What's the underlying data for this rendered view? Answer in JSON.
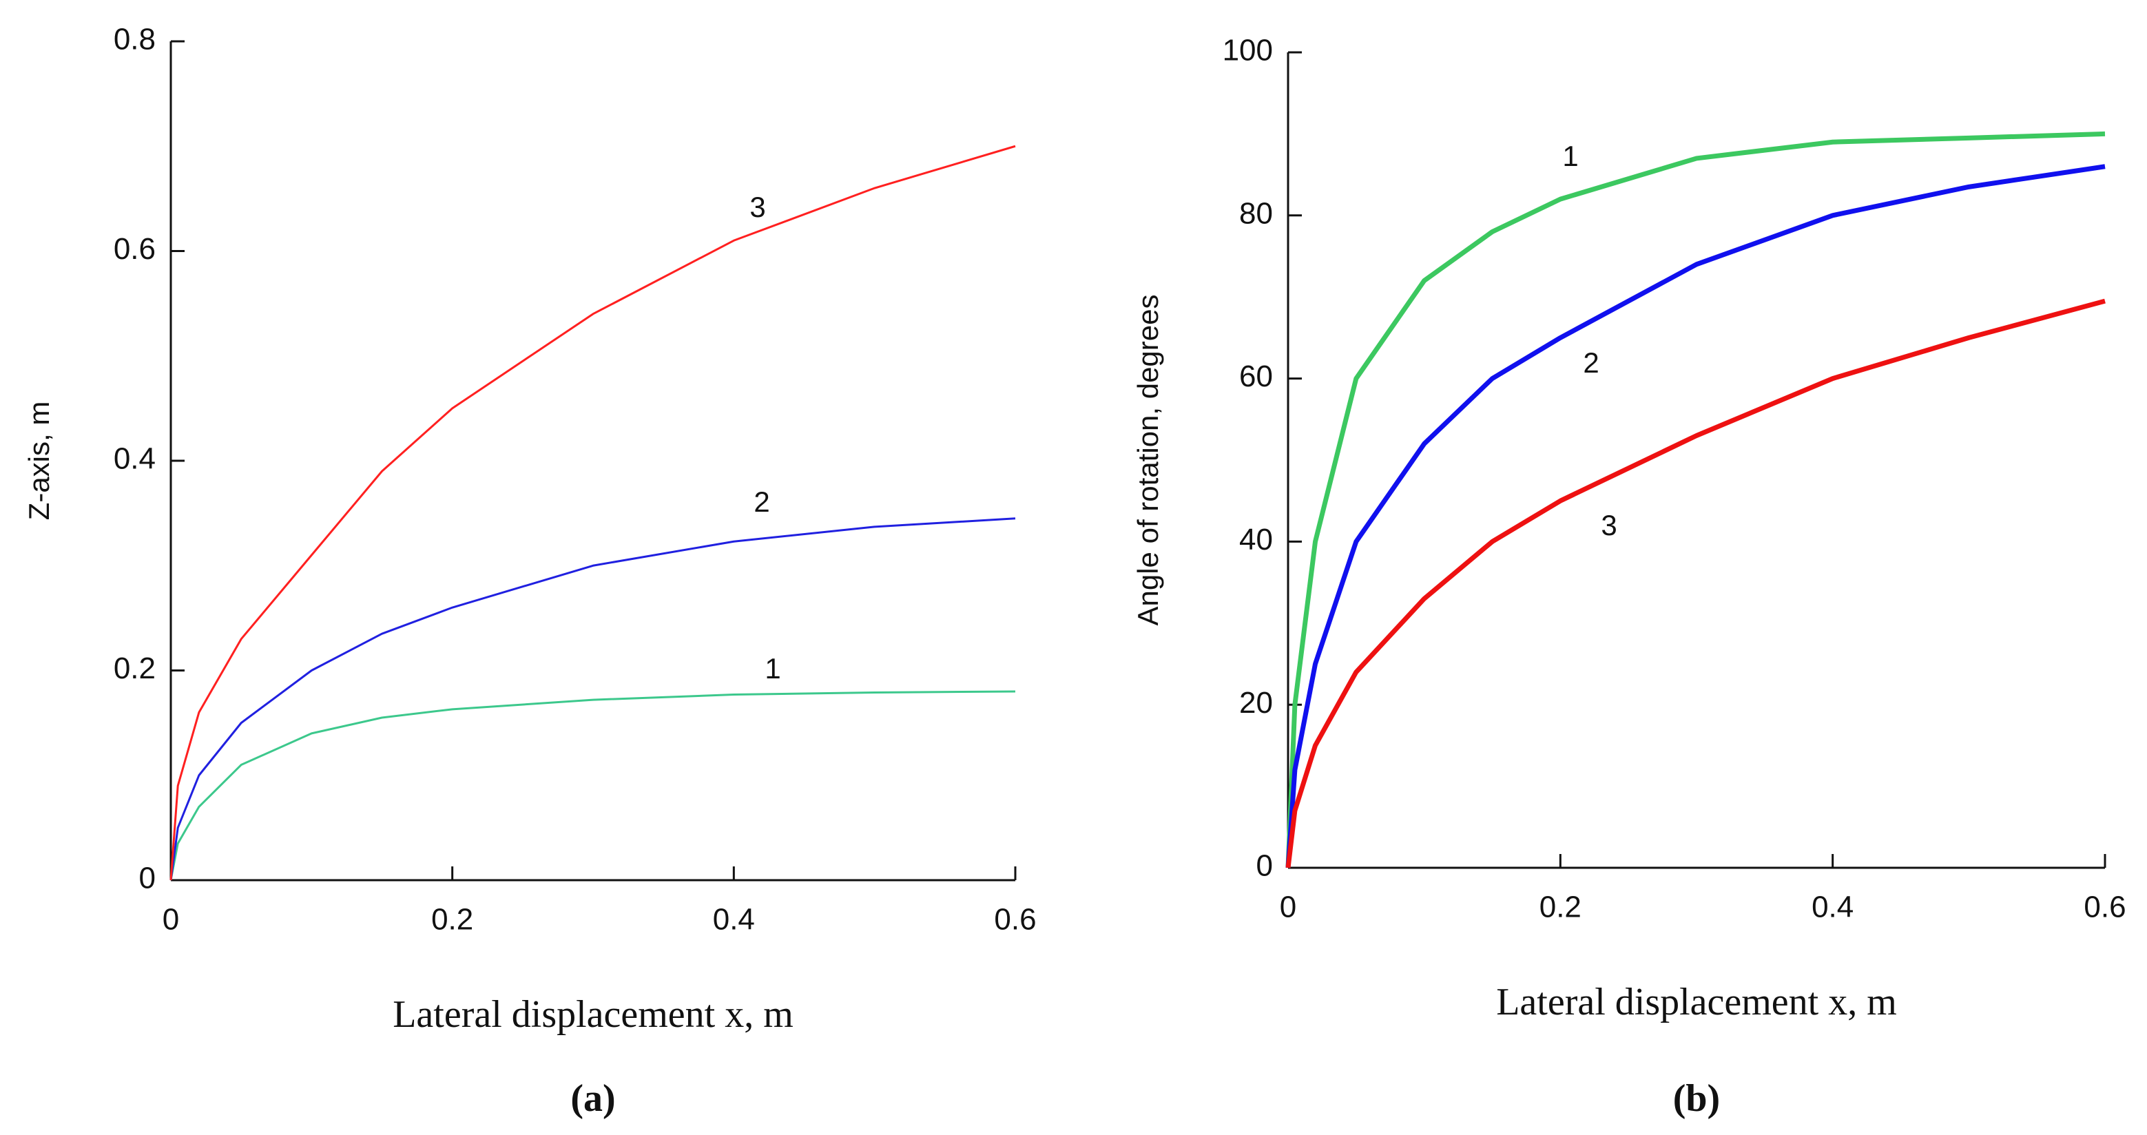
{
  "chart_data": [
    {
      "type": "line",
      "ylabel": "Z-axis, m",
      "xlabel": "Lateral displacement x, m",
      "caption": "(a)",
      "xlim": [
        0,
        0.6
      ],
      "xticks": [
        0,
        0.2,
        0.4,
        0.6
      ],
      "ylim": [
        0,
        0.8
      ],
      "yticks": [
        0,
        0.2,
        0.4,
        0.6,
        0.8
      ],
      "x": [
        0,
        0.005,
        0.02,
        0.05,
        0.1,
        0.15,
        0.2,
        0.3,
        0.4,
        0.5,
        0.6
      ],
      "series": [
        {
          "name": "1",
          "color": "#3cc88c",
          "values": [
            0,
            0.035,
            0.07,
            0.11,
            0.14,
            0.155,
            0.163,
            0.172,
            0.177,
            0.179,
            0.18
          ]
        },
        {
          "name": "2",
          "color": "#2020e0",
          "values": [
            0,
            0.05,
            0.1,
            0.15,
            0.2,
            0.235,
            0.26,
            0.3,
            0.323,
            0.337,
            0.345
          ]
        },
        {
          "name": "3",
          "color": "#ff2020",
          "values": [
            0,
            0.09,
            0.16,
            0.23,
            0.31,
            0.39,
            0.45,
            0.54,
            0.61,
            0.66,
            0.7
          ]
        }
      ]
    },
    {
      "type": "line",
      "ylabel": "Angle of rotation, degrees",
      "xlabel": "Lateral displacement x, m",
      "caption": "(b)",
      "xlim": [
        0,
        0.6
      ],
      "xticks": [
        0,
        0.2,
        0.4,
        0.6
      ],
      "ylim": [
        0,
        100
      ],
      "yticks": [
        0,
        20,
        40,
        60,
        80,
        100
      ],
      "x": [
        0,
        0.005,
        0.02,
        0.05,
        0.1,
        0.15,
        0.2,
        0.3,
        0.4,
        0.5,
        0.6
      ],
      "series": [
        {
          "name": "1",
          "color": "#3cc860",
          "values": [
            0,
            20,
            40,
            60,
            72,
            78,
            82,
            87,
            89,
            89.5,
            90
          ]
        },
        {
          "name": "2",
          "color": "#1010ee",
          "values": [
            0,
            12,
            25,
            40,
            52,
            60,
            65,
            74,
            80,
            83.5,
            86
          ]
        },
        {
          "name": "3",
          "color": "#ee1111",
          "values": [
            0,
            7,
            15,
            24,
            33,
            40,
            45,
            53,
            60,
            65,
            69.5
          ]
        }
      ]
    }
  ]
}
